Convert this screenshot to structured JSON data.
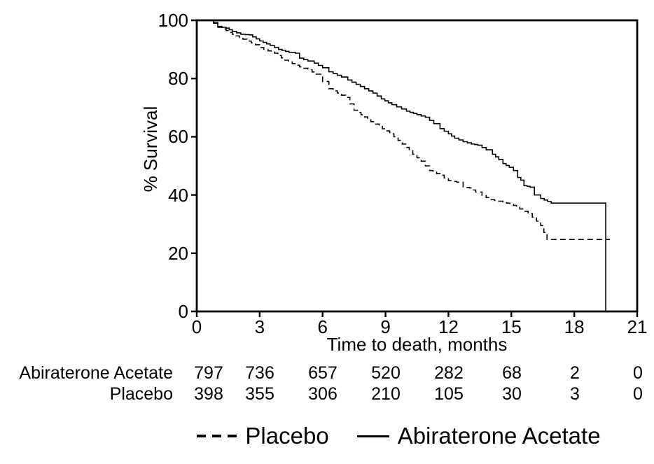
{
  "figure": {
    "background_color": "#ffffff",
    "foreground_color": "#000000"
  },
  "chart_data": {
    "type": "line",
    "subtype": "kaplan_meier_step",
    "title": "",
    "xlabel": "Time to death, months",
    "ylabel": "% Survival",
    "xlim": [
      0,
      21
    ],
    "ylim": [
      0,
      100
    ],
    "x_ticks": [
      0,
      3,
      6,
      9,
      12,
      15,
      18,
      21
    ],
    "y_ticks": [
      0,
      20,
      40,
      60,
      80,
      100
    ],
    "grid": false,
    "frame": "full_box",
    "series": [
      {
        "name": "Placebo",
        "line_style": "dashed",
        "color": "#000000",
        "points": [
          [
            0,
            100
          ],
          [
            0.55,
            100
          ],
          [
            0.8,
            99.0
          ],
          [
            1.0,
            97.6
          ],
          [
            1.4,
            96.5
          ],
          [
            1.7,
            95.2
          ],
          [
            2.2,
            93.5
          ],
          [
            2.8,
            91.6
          ],
          [
            3.0,
            90.6
          ],
          [
            3.4,
            89.5
          ],
          [
            3.7,
            88.7
          ],
          [
            4.2,
            86.3
          ],
          [
            4.9,
            84.0
          ],
          [
            5.3,
            83.0
          ],
          [
            5.7,
            81.5
          ],
          [
            6.0,
            79.0
          ],
          [
            6.3,
            76.5
          ],
          [
            6.7,
            75.0
          ],
          [
            7.1,
            73.5
          ],
          [
            7.5,
            69.1
          ],
          [
            8.0,
            66.8
          ],
          [
            8.3,
            65.2
          ],
          [
            8.7,
            63.5
          ],
          [
            9.0,
            62.0
          ],
          [
            9.4,
            60.0
          ],
          [
            9.8,
            57.5
          ],
          [
            10.3,
            54.0
          ],
          [
            10.7,
            51.6
          ],
          [
            11.1,
            48.4
          ],
          [
            11.6,
            46.8
          ],
          [
            12.0,
            44.9
          ],
          [
            12.4,
            44.4
          ],
          [
            12.7,
            42.8
          ],
          [
            13.0,
            42.4
          ],
          [
            13.3,
            41.0
          ],
          [
            13.6,
            39.8
          ],
          [
            14.0,
            38.4
          ],
          [
            14.6,
            37.6
          ],
          [
            15.1,
            36.4
          ],
          [
            15.4,
            35.2
          ],
          [
            15.8,
            33.6
          ],
          [
            16.0,
            32.4
          ],
          [
            16.2,
            31.0
          ],
          [
            16.4,
            29.5
          ],
          [
            16.7,
            24.7
          ],
          [
            19.7,
            24.7
          ]
        ]
      },
      {
        "name": "Abiraterone Acetate",
        "line_style": "solid",
        "color": "#000000",
        "points": [
          [
            0,
            100
          ],
          [
            0.55,
            100
          ],
          [
            0.8,
            99.2
          ],
          [
            1.0,
            97.9
          ],
          [
            1.4,
            97.3
          ],
          [
            1.7,
            96.2
          ],
          [
            2.1,
            95.2
          ],
          [
            2.5,
            95.0
          ],
          [
            3.0,
            92.9
          ],
          [
            3.5,
            91.4
          ],
          [
            3.9,
            90.0
          ],
          [
            4.4,
            89.0
          ],
          [
            4.7,
            88.7
          ],
          [
            4.9,
            87.0
          ],
          [
            5.3,
            86.0
          ],
          [
            5.6,
            85.3
          ],
          [
            6.0,
            83.7
          ],
          [
            6.3,
            82.3
          ],
          [
            6.9,
            80.5
          ],
          [
            7.2,
            79.5
          ],
          [
            7.6,
            78.0
          ],
          [
            8.0,
            76.5
          ],
          [
            8.4,
            75.0
          ],
          [
            8.8,
            73.0
          ],
          [
            9.3,
            71.0
          ],
          [
            10.0,
            68.8
          ],
          [
            10.5,
            67.6
          ],
          [
            10.9,
            66.7
          ],
          [
            11.3,
            64.5
          ],
          [
            11.6,
            62.8
          ],
          [
            12.0,
            61.0
          ],
          [
            12.3,
            59.5
          ],
          [
            12.7,
            58.3
          ],
          [
            13.1,
            57.5
          ],
          [
            13.4,
            57.1
          ],
          [
            13.8,
            55.5
          ],
          [
            14.1,
            54.0
          ],
          [
            14.4,
            52.2
          ],
          [
            14.6,
            50.8
          ],
          [
            14.9,
            49.5
          ],
          [
            15.1,
            48.4
          ],
          [
            15.3,
            46.0
          ],
          [
            15.45,
            45.1
          ],
          [
            15.6,
            43.2
          ],
          [
            15.9,
            42.7
          ],
          [
            16.1,
            40.0
          ],
          [
            16.4,
            38.8
          ],
          [
            16.9,
            37.2
          ],
          [
            19.5,
            37.2
          ],
          [
            19.5,
            0
          ]
        ]
      }
    ],
    "at_risk_table": {
      "rows": [
        {
          "label": "Abiraterone Acetate",
          "counts": [
            797,
            736,
            657,
            520,
            282,
            68,
            2,
            0
          ]
        },
        {
          "label": "Placebo",
          "counts": [
            398,
            355,
            306,
            210,
            105,
            30,
            3,
            0
          ]
        }
      ]
    },
    "legend": {
      "position": "bottom_center",
      "entries": [
        {
          "label": "Placebo",
          "line_style": "dashed"
        },
        {
          "label": "Abiraterone Acetate",
          "line_style": "solid"
        }
      ]
    }
  }
}
